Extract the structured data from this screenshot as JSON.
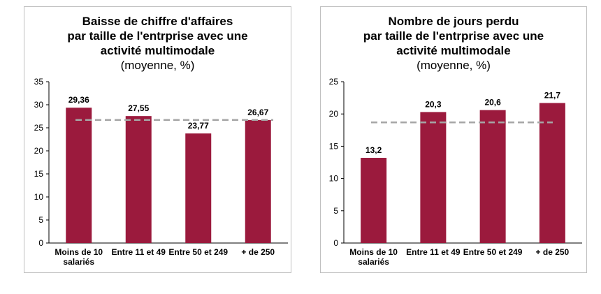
{
  "colors": {
    "bar": "#9b1a3d",
    "avg_line": "#a6a6a6",
    "axis": "#000000"
  },
  "chart_data": [
    {
      "type": "bar",
      "title": "Baisse de chiffre d'affaires\npar taille de l'entrprise avec une\nactivité multimodale",
      "subtitle": "(moyenne, %)",
      "categories": [
        "Moins de 10\nsalariés",
        "Entre 11 et 49",
        "Entre 50 et 249",
        "+ de 250"
      ],
      "values": [
        29.36,
        27.55,
        23.77,
        26.67
      ],
      "data_labels": [
        "29,36",
        "27,55",
        "23,77",
        "26,67"
      ],
      "ylim": [
        0,
        35
      ],
      "yticks": [
        0,
        5,
        10,
        15,
        20,
        25,
        30,
        35
      ],
      "reference_line": 26.7,
      "xlabel": "",
      "ylabel": ""
    },
    {
      "type": "bar",
      "title": "Nombre de jours perdu\npar taille de l'entrprise avec une\nactivité multimodale",
      "subtitle": "(moyenne, %)",
      "categories": [
        "Moins de 10\nsalariés",
        "Entre 11 et 49",
        "Entre 50 et 249",
        "+ de 250"
      ],
      "values": [
        13.2,
        20.3,
        20.6,
        21.7
      ],
      "data_labels": [
        "13,2",
        "20,3",
        "20,6",
        "21,7"
      ],
      "ylim": [
        0,
        25
      ],
      "yticks": [
        0,
        5,
        10,
        15,
        20,
        25
      ],
      "reference_line": 18.7,
      "xlabel": "",
      "ylabel": ""
    }
  ]
}
